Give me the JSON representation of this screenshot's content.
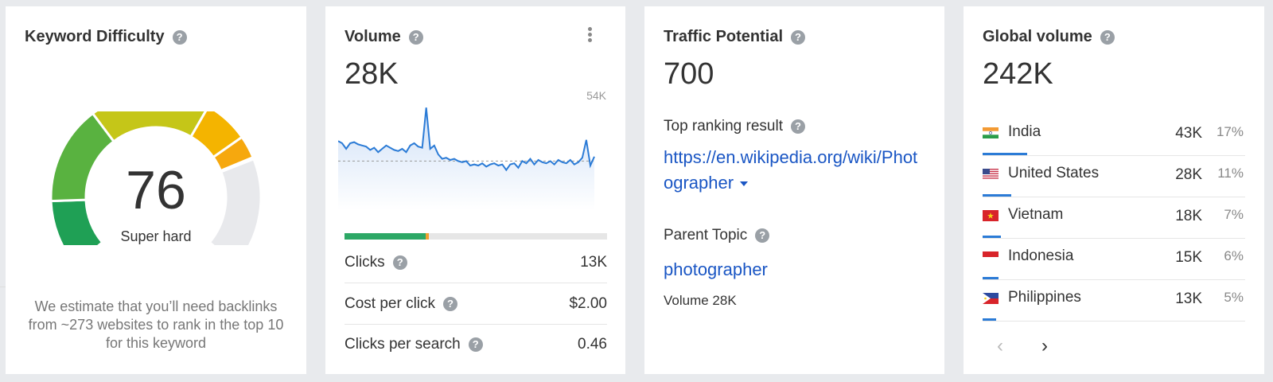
{
  "keyword_difficulty": {
    "title": "Keyword Difficulty",
    "score": "76",
    "label": "Super hard",
    "note": "We estimate that you’ll need backlinks from ~273 websites to rank in the top 10 for this keyword",
    "score_fraction": 0.76,
    "colors": {
      "green_dark": "#1fa055",
      "green": "#59b240",
      "yellow_green": "#c5c618",
      "orange": "#f4b400",
      "empty": "#e8e9ec"
    }
  },
  "volume": {
    "title": "Volume",
    "value": "28K",
    "max_label": "54K",
    "clicks_fraction_organic": 0.31,
    "clicks_fraction_paid": 0.01,
    "rows": [
      {
        "label": "Clicks",
        "value": "13K",
        "help": true
      },
      {
        "label": "Cost per click",
        "value": "$2.00",
        "help": true
      },
      {
        "label": "Clicks per search",
        "value": "0.46",
        "help": true
      }
    ],
    "trend": [
      0.62,
      0.6,
      0.55,
      0.6,
      0.61,
      0.59,
      0.58,
      0.57,
      0.54,
      0.56,
      0.52,
      0.55,
      0.58,
      0.56,
      0.54,
      0.53,
      0.55,
      0.52,
      0.58,
      0.6,
      0.57,
      0.56,
      0.92,
      0.55,
      0.58,
      0.5,
      0.46,
      0.47,
      0.45,
      0.46,
      0.44,
      0.43,
      0.44,
      0.4,
      0.41,
      0.4,
      0.42,
      0.39,
      0.41,
      0.42,
      0.4,
      0.41,
      0.36,
      0.41,
      0.42,
      0.38,
      0.44,
      0.42,
      0.46,
      0.41,
      0.45,
      0.43,
      0.42,
      0.44,
      0.41,
      0.45,
      0.43,
      0.42,
      0.45,
      0.41,
      0.43,
      0.47,
      0.63,
      0.4,
      0.48
    ],
    "average_level": 0.44,
    "trend_color": "#2b7bd6"
  },
  "traffic_potential": {
    "title": "Traffic Potential",
    "value": "700",
    "top_result_label": "Top ranking result",
    "top_result_url": "https://en.wikipedia.org/wiki/Photographer",
    "parent_topic_label": "Parent Topic",
    "parent_topic": "photographer",
    "parent_volume": "Volume 28K"
  },
  "global_volume": {
    "title": "Global volume",
    "value": "242K",
    "countries": [
      {
        "name": "India",
        "volume": "43K",
        "percent": "17%",
        "share": 0.17,
        "flag": "india-flag-icon"
      },
      {
        "name": "United States",
        "volume": "28K",
        "percent": "11%",
        "share": 0.11,
        "flag": "us-flag-icon"
      },
      {
        "name": "Vietnam",
        "volume": "18K",
        "percent": "7%",
        "share": 0.07,
        "flag": "vietnam-flag-icon"
      },
      {
        "name": "Indonesia",
        "volume": "15K",
        "percent": "6%",
        "share": 0.06,
        "flag": "indonesia-flag-icon"
      },
      {
        "name": "Philippines",
        "volume": "13K",
        "percent": "5%",
        "share": 0.05,
        "flag": "philippines-flag-icon"
      }
    ],
    "pager_prev": "‹",
    "pager_next": "›"
  }
}
